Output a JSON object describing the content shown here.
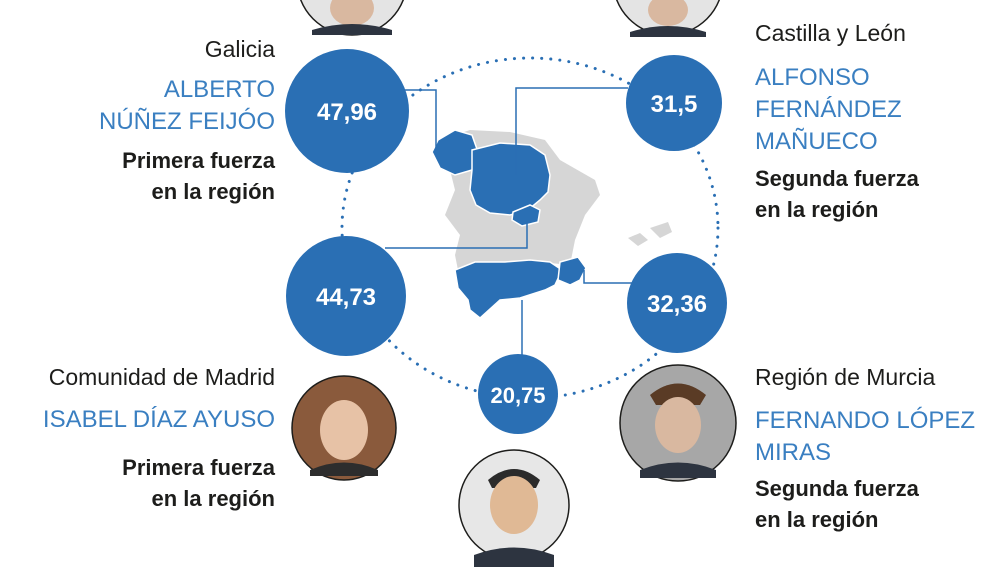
{
  "colors": {
    "accent": "#2a6fb4",
    "map_highlight": "#2a6fb4",
    "map_base": "#d6d6d6",
    "name_text": "#3a7fc1",
    "body_text": "#1d1d1b"
  },
  "chart_data": {
    "type": "bubble-map",
    "items": [
      {
        "region": "Galicia",
        "leader": "ALBERTO\nNÚÑEZ FEIJÓO",
        "value": 47.96,
        "value_label": "47,96",
        "position_text": "Primera fuerza\nen la región"
      },
      {
        "region": "Castilla y León",
        "leader": "ALFONSO\nFERNÁNDEZ\nMAÑUECO",
        "value": 31.5,
        "value_label": "31,5",
        "position_text": "Segunda fuerza\nen la región"
      },
      {
        "region": "Comunidad de Madrid",
        "leader": "ISABEL DÍAZ AYUSO",
        "value": 44.73,
        "value_label": "44,73",
        "position_text": "Primera fuerza\nen la región"
      },
      {
        "region": "Región de Murcia",
        "leader": "FERNANDO LÓPEZ\nMIRAS",
        "value": 32.36,
        "value_label": "32,36",
        "position_text": "Segunda fuerza\nen la región"
      },
      {
        "region": "",
        "leader": "",
        "value": 20.75,
        "value_label": "20,75",
        "position_text": ""
      }
    ]
  }
}
